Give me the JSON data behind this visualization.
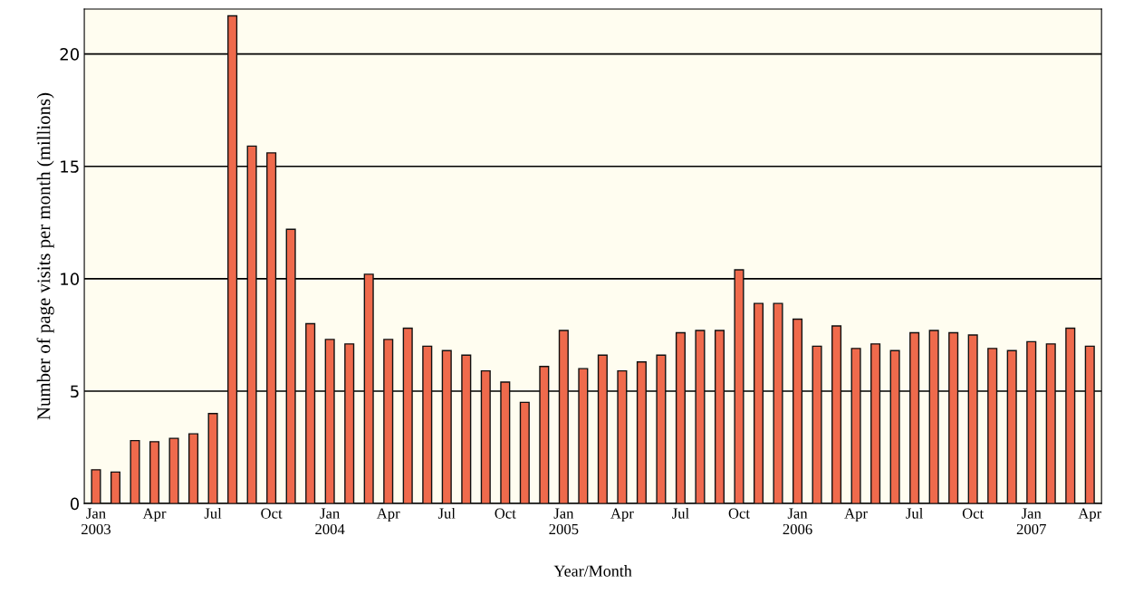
{
  "chart_data": {
    "type": "bar",
    "xlabel": "Year/Month",
    "ylabel": "Number of page visits per month (millions)",
    "categories": [
      "Jan\n2003",
      null,
      null,
      "Apr",
      null,
      null,
      "Jul",
      null,
      null,
      "Oct",
      null,
      null,
      "Jan\n2004",
      null,
      null,
      "Apr",
      null,
      null,
      "Jul",
      null,
      null,
      "Oct",
      null,
      null,
      "Jan\n2005",
      null,
      null,
      "Apr",
      null,
      null,
      "Jul",
      null,
      null,
      "Oct",
      null,
      null,
      "Jan\n2006",
      null,
      null,
      "Apr",
      null,
      null,
      "Jul",
      null,
      null,
      "Oct",
      null,
      null,
      "Jan\n2007",
      null,
      null,
      "Apr"
    ],
    "values": [
      1.5,
      1.4,
      2.8,
      2.75,
      2.9,
      3.1,
      4.0,
      21.7,
      15.9,
      15.6,
      12.2,
      8.0,
      7.3,
      7.1,
      10.2,
      7.3,
      7.8,
      7.0,
      6.8,
      6.6,
      5.9,
      5.4,
      4.5,
      6.1,
      7.7,
      6.0,
      6.6,
      5.9,
      6.3,
      6.6,
      7.6,
      7.7,
      7.7,
      10.4,
      8.9,
      8.9,
      8.2,
      7.0,
      7.9,
      6.9,
      7.1,
      6.8,
      7.6,
      7.7,
      7.6,
      7.5,
      6.9,
      6.8,
      7.2,
      7.1,
      7.8,
      7.0
    ],
    "color": "#ef6a4c",
    "ylim": [
      0,
      22
    ],
    "yticks": [
      0,
      5,
      10,
      15,
      20
    ],
    "grid": "y"
  }
}
